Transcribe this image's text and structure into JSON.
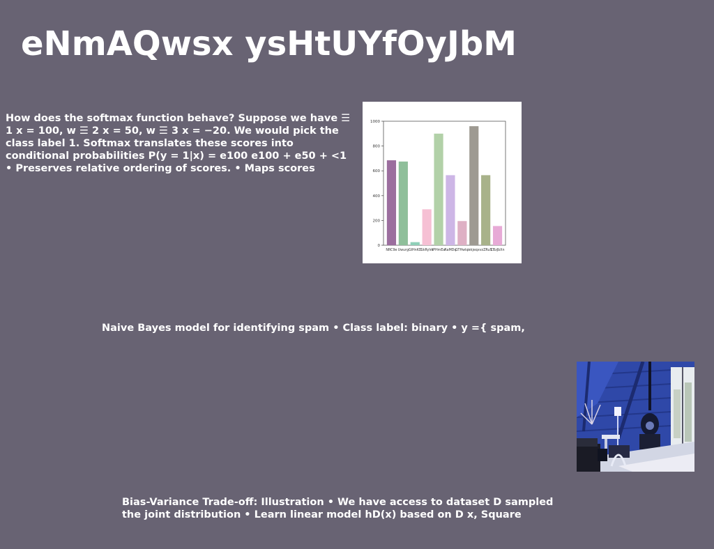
{
  "slide": {
    "title": "eNmAQwsx ysHtUYfOyJbM",
    "paragraph_1": "How does the softmax function behave? Suppose we have ☰ 1 x = 100, w ☰ 2 x = 50, w ☰ 3 x = −20. We would pick the class label 1. Softmax translates these scores into conditional probabilities P(y = 1|x) = e100 e100 + e50 + <1 • Preserves relative ordering of scores. • Maps scores",
    "paragraph_2": "Naive Bayes model for identifying spam • Class label: binary • y ={ spam,",
    "paragraph_3": "Bias-Variance Trade-off: Illustration • We have access to dataset D sampled the joint distribution • Learn linear model hD(x) based on D x, Square"
  },
  "chart_data": {
    "type": "bar",
    "categories": [
      "NRC9e",
      "Uwurg",
      "GIHnKD",
      "GkRyVe",
      "IPHmEa",
      "RaMDq",
      "GTHwlqi",
      "ekjeqx",
      "vzZRuS",
      "CBzJbXn"
    ],
    "values": [
      685,
      675,
      25,
      290,
      900,
      565,
      195,
      960,
      565,
      155
    ],
    "colors": [
      "#9b6e9e",
      "#8fbf9a",
      "#8fcfb8",
      "#f6c0d4",
      "#b2d1a8",
      "#cdb6e6",
      "#deb0c4",
      "#9e9a92",
      "#a8b28a",
      "#e7aad6"
    ],
    "ylim": [
      0,
      1000
    ],
    "yticks": [
      0,
      200,
      400,
      600,
      800,
      1000
    ],
    "title": "",
    "xlabel": "",
    "ylabel": "",
    "grid": false
  }
}
